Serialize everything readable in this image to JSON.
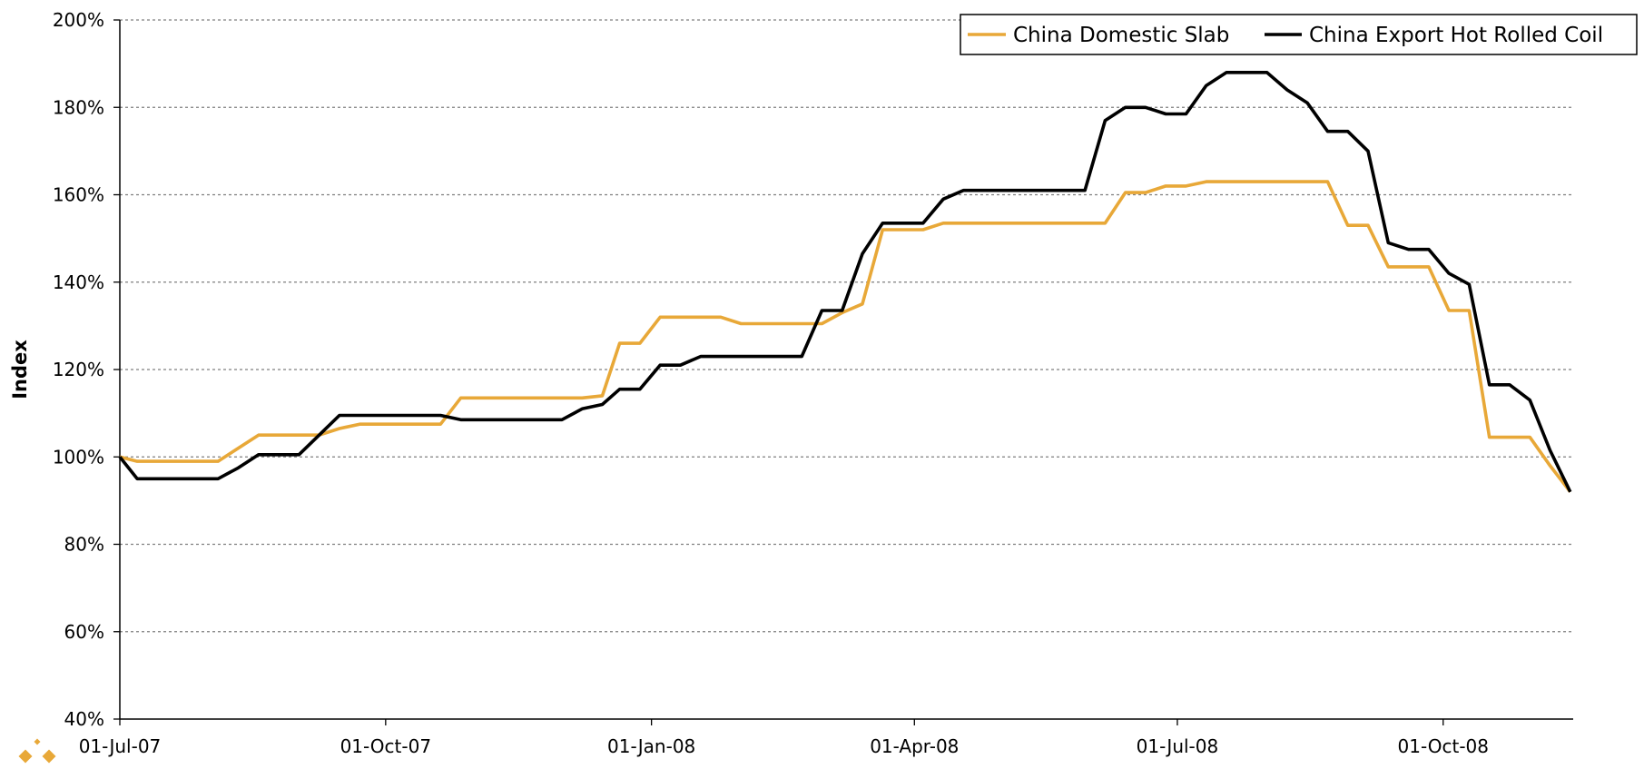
{
  "chart_data": {
    "type": "line",
    "title": "",
    "xlabel": "",
    "ylabel": "Index",
    "ylim": [
      40,
      200
    ],
    "y_ticks": [
      40,
      60,
      80,
      100,
      120,
      140,
      160,
      180,
      200
    ],
    "y_tick_format": "percent",
    "xlim": [
      "2007-07-01",
      "2008-11-15"
    ],
    "x_tick_labels": [
      {
        "date": "2007-07-01",
        "label": "01-Jul-07"
      },
      {
        "date": "2007-10-01",
        "label": "01-Oct-07"
      },
      {
        "date": "2008-01-01",
        "label": "01-Jan-08"
      },
      {
        "date": "2008-04-01",
        "label": "01-Apr-08"
      },
      {
        "date": "2008-07-01",
        "label": "01-Jul-08"
      },
      {
        "date": "2008-10-01",
        "label": "01-Oct-08"
      }
    ],
    "grid": "horizontal dashed",
    "legend_position": "top-right",
    "series": [
      {
        "name": "China Domestic Slab",
        "color": "#E8A838",
        "points": [
          [
            "2007-07-01",
            100.0
          ],
          [
            "2007-07-07",
            99.0
          ],
          [
            "2007-07-14",
            99.0
          ],
          [
            "2007-07-21",
            99.0
          ],
          [
            "2007-07-28",
            99.0
          ],
          [
            "2007-08-04",
            99.0
          ],
          [
            "2007-08-11",
            102.0
          ],
          [
            "2007-08-18",
            105.0
          ],
          [
            "2007-08-25",
            105.0
          ],
          [
            "2007-09-01",
            105.0
          ],
          [
            "2007-09-08",
            105.0
          ],
          [
            "2007-09-15",
            106.5
          ],
          [
            "2007-09-22",
            107.5
          ],
          [
            "2007-09-29",
            107.5
          ],
          [
            "2007-10-06",
            107.5
          ],
          [
            "2007-10-13",
            107.5
          ],
          [
            "2007-10-20",
            107.5
          ],
          [
            "2007-10-27",
            113.5
          ],
          [
            "2007-11-03",
            113.5
          ],
          [
            "2007-11-10",
            113.5
          ],
          [
            "2007-11-17",
            113.5
          ],
          [
            "2007-11-24",
            113.5
          ],
          [
            "2007-12-01",
            113.5
          ],
          [
            "2007-12-08",
            113.5
          ],
          [
            "2007-12-15",
            114.0
          ],
          [
            "2007-12-21",
            126.0
          ],
          [
            "2007-12-28",
            126.0
          ],
          [
            "2008-01-04",
            132.0
          ],
          [
            "2008-01-11",
            132.0
          ],
          [
            "2008-01-18",
            132.0
          ],
          [
            "2008-01-25",
            132.0
          ],
          [
            "2008-02-01",
            130.5
          ],
          [
            "2008-02-08",
            130.5
          ],
          [
            "2008-02-15",
            130.5
          ],
          [
            "2008-02-22",
            130.5
          ],
          [
            "2008-02-29",
            130.5
          ],
          [
            "2008-03-07",
            133.0
          ],
          [
            "2008-03-14",
            135.0
          ],
          [
            "2008-03-21",
            152.0
          ],
          [
            "2008-03-28",
            152.0
          ],
          [
            "2008-04-04",
            152.0
          ],
          [
            "2008-04-11",
            153.5
          ],
          [
            "2008-04-18",
            153.5
          ],
          [
            "2008-04-25",
            153.5
          ],
          [
            "2008-05-02",
            153.5
          ],
          [
            "2008-05-09",
            153.5
          ],
          [
            "2008-05-16",
            153.5
          ],
          [
            "2008-05-23",
            153.5
          ],
          [
            "2008-05-30",
            153.5
          ],
          [
            "2008-06-06",
            153.5
          ],
          [
            "2008-06-13",
            160.5
          ],
          [
            "2008-06-20",
            160.5
          ],
          [
            "2008-06-27",
            162.0
          ],
          [
            "2008-07-04",
            162.0
          ],
          [
            "2008-07-11",
            163.0
          ],
          [
            "2008-07-18",
            163.0
          ],
          [
            "2008-07-25",
            163.0
          ],
          [
            "2008-08-01",
            163.0
          ],
          [
            "2008-08-08",
            163.0
          ],
          [
            "2008-08-15",
            163.0
          ],
          [
            "2008-08-22",
            163.0
          ],
          [
            "2008-08-29",
            153.0
          ],
          [
            "2008-09-05",
            153.0
          ],
          [
            "2008-09-12",
            143.5
          ],
          [
            "2008-09-19",
            143.5
          ],
          [
            "2008-09-26",
            143.5
          ],
          [
            "2008-10-03",
            133.5
          ],
          [
            "2008-10-10",
            133.5
          ],
          [
            "2008-10-17",
            104.5
          ],
          [
            "2008-10-24",
            104.5
          ],
          [
            "2008-10-31",
            104.5
          ],
          [
            "2008-11-07",
            98.0
          ],
          [
            "2008-11-14",
            92.0
          ]
        ]
      },
      {
        "name": "China Export Hot Rolled Coil",
        "color": "#000000",
        "points": [
          [
            "2007-07-01",
            100.0
          ],
          [
            "2007-07-07",
            95.0
          ],
          [
            "2007-07-14",
            95.0
          ],
          [
            "2007-07-21",
            95.0
          ],
          [
            "2007-07-28",
            95.0
          ],
          [
            "2007-08-04",
            95.0
          ],
          [
            "2007-08-11",
            97.5
          ],
          [
            "2007-08-18",
            100.5
          ],
          [
            "2007-08-25",
            100.5
          ],
          [
            "2007-09-01",
            100.5
          ],
          [
            "2007-09-08",
            105.0
          ],
          [
            "2007-09-15",
            109.5
          ],
          [
            "2007-09-22",
            109.5
          ],
          [
            "2007-09-29",
            109.5
          ],
          [
            "2007-10-06",
            109.5
          ],
          [
            "2007-10-13",
            109.5
          ],
          [
            "2007-10-20",
            109.5
          ],
          [
            "2007-10-27",
            108.5
          ],
          [
            "2007-11-03",
            108.5
          ],
          [
            "2007-11-10",
            108.5
          ],
          [
            "2007-11-17",
            108.5
          ],
          [
            "2007-11-24",
            108.5
          ],
          [
            "2007-12-01",
            108.5
          ],
          [
            "2007-12-08",
            111.0
          ],
          [
            "2007-12-15",
            112.0
          ],
          [
            "2007-12-21",
            115.5
          ],
          [
            "2007-12-28",
            115.5
          ],
          [
            "2008-01-04",
            121.0
          ],
          [
            "2008-01-11",
            121.0
          ],
          [
            "2008-01-18",
            123.0
          ],
          [
            "2008-01-25",
            123.0
          ],
          [
            "2008-02-01",
            123.0
          ],
          [
            "2008-02-08",
            123.0
          ],
          [
            "2008-02-15",
            123.0
          ],
          [
            "2008-02-22",
            123.0
          ],
          [
            "2008-02-29",
            133.5
          ],
          [
            "2008-03-07",
            133.5
          ],
          [
            "2008-03-14",
            146.5
          ],
          [
            "2008-03-21",
            153.5
          ],
          [
            "2008-03-28",
            153.5
          ],
          [
            "2008-04-04",
            153.5
          ],
          [
            "2008-04-11",
            159.0
          ],
          [
            "2008-04-18",
            161.0
          ],
          [
            "2008-04-25",
            161.0
          ],
          [
            "2008-05-02",
            161.0
          ],
          [
            "2008-05-09",
            161.0
          ],
          [
            "2008-05-16",
            161.0
          ],
          [
            "2008-05-23",
            161.0
          ],
          [
            "2008-05-30",
            161.0
          ],
          [
            "2008-06-06",
            177.0
          ],
          [
            "2008-06-13",
            180.0
          ],
          [
            "2008-06-20",
            180.0
          ],
          [
            "2008-06-27",
            178.5
          ],
          [
            "2008-07-04",
            178.5
          ],
          [
            "2008-07-11",
            185.0
          ],
          [
            "2008-07-18",
            188.0
          ],
          [
            "2008-07-25",
            188.0
          ],
          [
            "2008-08-01",
            188.0
          ],
          [
            "2008-08-08",
            184.0
          ],
          [
            "2008-08-15",
            181.0
          ],
          [
            "2008-08-22",
            174.5
          ],
          [
            "2008-08-29",
            174.5
          ],
          [
            "2008-09-05",
            170.0
          ],
          [
            "2008-09-12",
            149.0
          ],
          [
            "2008-09-19",
            147.5
          ],
          [
            "2008-09-26",
            147.5
          ],
          [
            "2008-10-03",
            142.0
          ],
          [
            "2008-10-10",
            139.5
          ],
          [
            "2008-10-17",
            116.5
          ],
          [
            "2008-10-24",
            116.5
          ],
          [
            "2008-10-31",
            113.0
          ],
          [
            "2008-11-07",
            101.5
          ],
          [
            "2008-11-14",
            92.0
          ]
        ]
      }
    ]
  },
  "logo": {
    "name": "diamond-logo",
    "color": "#E8A838"
  }
}
